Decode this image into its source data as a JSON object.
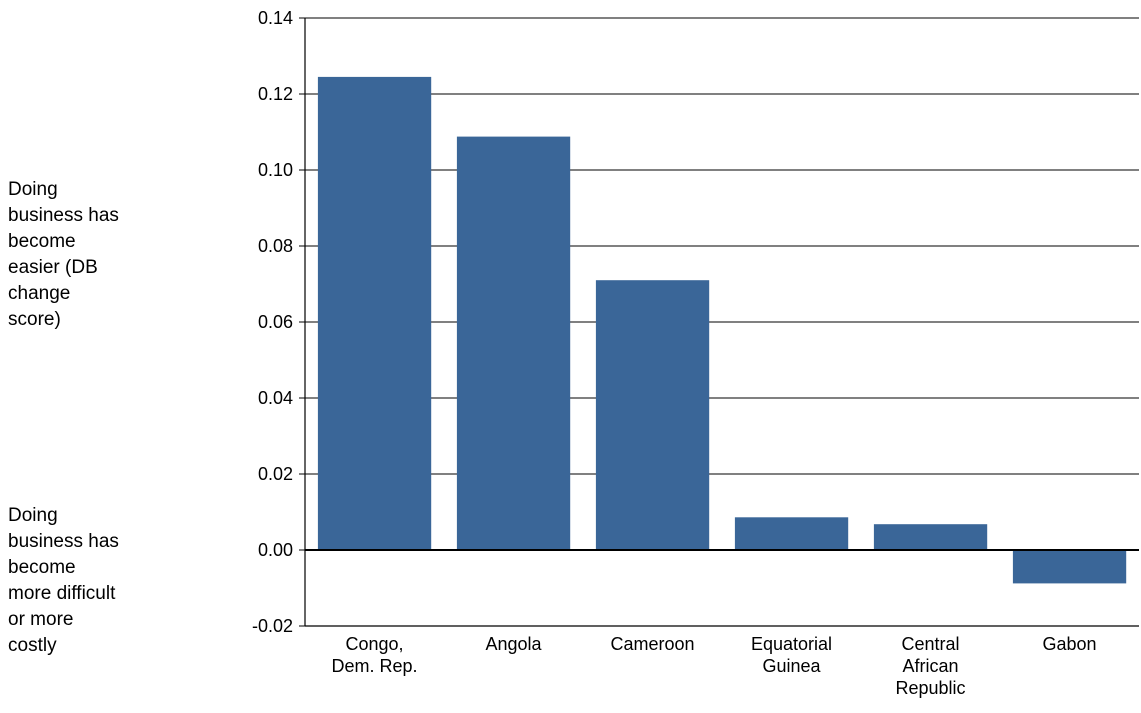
{
  "chart_data": {
    "type": "bar",
    "categories": [
      "Congo,\nDem. Rep.",
      "Angola",
      "Cameroon",
      "Equatorial\nGuinea",
      "Central\nAfrican\nRepublic",
      "Gabon"
    ],
    "values": [
      0.1245,
      0.1088,
      0.071,
      0.0086,
      0.0068,
      -0.0088
    ],
    "title": "",
    "xlabel": "",
    "ylabel": "",
    "ylim": [
      -0.02,
      0.14
    ],
    "yticks": [
      "0.14",
      "0.12",
      "0.10",
      "0.08",
      "0.06",
      "0.04",
      "0.02",
      "0.00",
      "-0.02"
    ],
    "ytick_values": [
      0.14,
      0.12,
      0.1,
      0.08,
      0.06,
      0.04,
      0.02,
      0.0,
      -0.02
    ],
    "grid": true,
    "bar_color": "#3a6698",
    "annotations": {
      "positive": "Doing\nbusiness has\nbecome\neasier (DB\nchange\nscore)",
      "negative": "Doing\nbusiness has\nbecome\nmore difficult\nor more\ncostly"
    }
  }
}
